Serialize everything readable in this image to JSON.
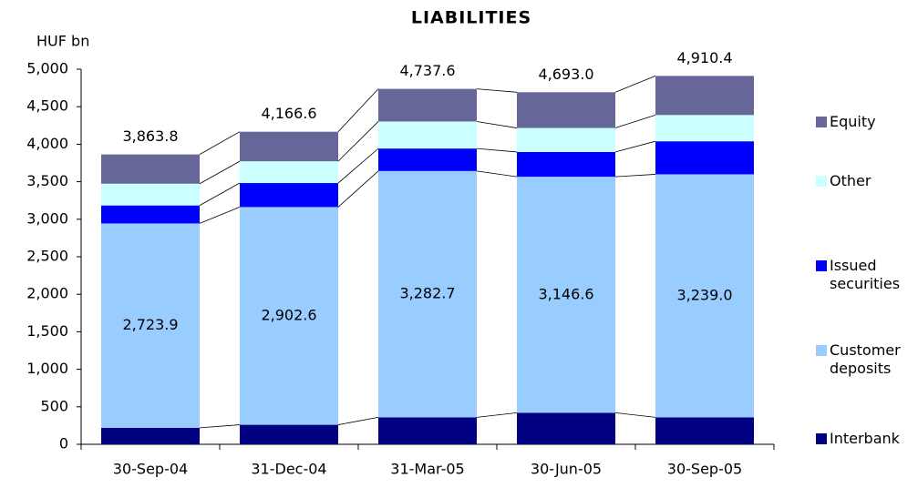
{
  "chart_data": {
    "type": "stacked_bar",
    "title": "LIABILITIES",
    "y_label": "HUF bn",
    "categories": [
      "30-Sep-04",
      "31-Dec-04",
      "31-Mar-05",
      "30-Jun-05",
      "30-Sep-05"
    ],
    "series": [
      {
        "name": "Interbank",
        "color": "#000080",
        "values": [
          220,
          260,
          360,
          420,
          360
        ]
      },
      {
        "name": "Customer deposits",
        "color": "#99ccff",
        "values": [
          2723.9,
          2902.6,
          3282.7,
          3146.6,
          3239.0
        ],
        "value_labels": [
          "2,723.9",
          "2,902.6",
          "3,282.7",
          "3,146.6",
          "3,239.0"
        ]
      },
      {
        "name": "Issued securities",
        "color": "#0000ff",
        "values": [
          240,
          320,
          300,
          330,
          440
        ]
      },
      {
        "name": "Other",
        "color": "#ccffff",
        "values": [
          290,
          290,
          360,
          320,
          350
        ]
      },
      {
        "name": "Equity",
        "color": "#666699",
        "values": [
          389.9,
          393.9,
          434.9,
          476.4,
          521.4
        ]
      }
    ],
    "total_values": [
      3863.8,
      4166.6,
      4737.6,
      4693.0,
      4910.4
    ],
    "total_labels": [
      "3,863.8",
      "4,166.6",
      "4,737.6",
      "4,693.0",
      "4,910.4"
    ],
    "ylim": [
      0,
      5000
    ],
    "yticks": [
      0,
      500,
      {
        "value": 1000,
        "label": "1,000"
      },
      {
        "value": 1500,
        "label": "1,500"
      },
      {
        "value": 2000,
        "label": "2,000"
      },
      {
        "value": 2500,
        "label": "2,500"
      },
      {
        "value": 3000,
        "label": "3,000"
      },
      {
        "value": 3500,
        "label": "3,500"
      },
      {
        "value": 4000,
        "label": "4,000"
      },
      {
        "value": 4500,
        "label": "4,500"
      },
      {
        "value": 5000,
        "label": "5,000"
      }
    ],
    "legend": "right"
  }
}
